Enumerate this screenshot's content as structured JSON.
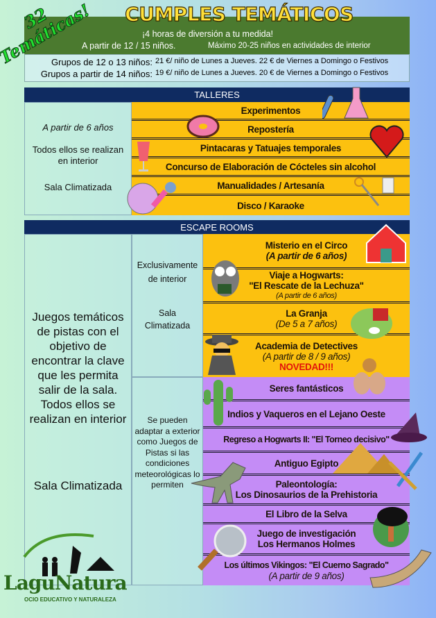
{
  "header": {
    "badge": "32 Temáticas!",
    "title": "CUMPLES TEMÁTICOS",
    "tagline": "¡4 horas de diversión a tu medida!",
    "min_kids": "A partir de 12 / 15 niños.",
    "max_kids": "Máximo 20-25 niños en actividades de interior"
  },
  "prices": [
    {
      "group": "Grupos de 12 o 13 niños:",
      "text": "21 €/ niño de Lunes a Jueves. 22 € de Viernes a Domingo o Festivos"
    },
    {
      "group": "Grupos a partir de 14 niños:",
      "text": "19 €/ niño de Lunes a Jueves. 20 € de Viernes a Domingo o Festivos"
    }
  ],
  "talleres": {
    "label": "TALLERES",
    "age": "A partir de 6 años",
    "indoor": "Todos ellos se realizan en interior",
    "climate": "Sala Climatizada",
    "items": [
      "Experimentos",
      "Repostería",
      "Pintacaras y Tatuajes temporales",
      "Concurso de Elaboración de Cócteles sin alcohol",
      "Manualidades / Artesanía",
      "Disco / Karaoke"
    ]
  },
  "escape": {
    "label": "ESCAPE ROOMS",
    "description": "Juegos temáticos de pistas con el objetivo de encontrar la clave que les permita salir de la sala. Todos ellos se realizan en interior",
    "climate": "Sala Climatizada",
    "indoor_only": "Exclusivamente de interior",
    "indoor_climate": "Sala Climatizada",
    "outdoor_note": "Se pueden adaptar a exterior como Juegos de Pistas si las condiciones meteorológicas lo permiten",
    "indoor_rooms": [
      {
        "name": "Misterio en el Circo",
        "note": "(A partir de 6 años)"
      },
      {
        "name": "Viaje a Hogwarts:",
        "name2": "\"El Rescate de la Lechuza\"",
        "note": "(A partir de 6 años)"
      },
      {
        "name": "La Granja",
        "note": "(De 5 a 7 años)"
      },
      {
        "name": "Academia de Detectives",
        "note": "(A partir de 8 / 9 años)",
        "badge": "NOVEDAD!!!"
      }
    ],
    "adaptable_rooms": [
      {
        "name": "Seres fantásticos"
      },
      {
        "name": "Indios y Vaqueros en el Lejano Oeste"
      },
      {
        "name": "Regreso a Hogwarts II: \"El Torneo decisivo\""
      },
      {
        "name": "Antiguo Egipto"
      },
      {
        "name": "Paleontología:",
        "name2": "Los Dinosaurios de la Prehistoria"
      },
      {
        "name": "El Libro de la Selva"
      },
      {
        "name": "Juego de investigación",
        "name2": "Los Hermanos Holmes"
      },
      {
        "name": "Los últimos Vikingos: \"El Cuerno Sagrado\"",
        "note": "(A partir de 9 años)"
      }
    ]
  },
  "logo": {
    "name": "LaguNatura",
    "tagline": "Ocio Educativo y Naturaleza"
  },
  "colors": {
    "green": "#4b7a2f",
    "navy": "#0f2b61",
    "yellow": "#fcc10f",
    "purple": "#c48cf6",
    "title": "#ffe03a"
  }
}
